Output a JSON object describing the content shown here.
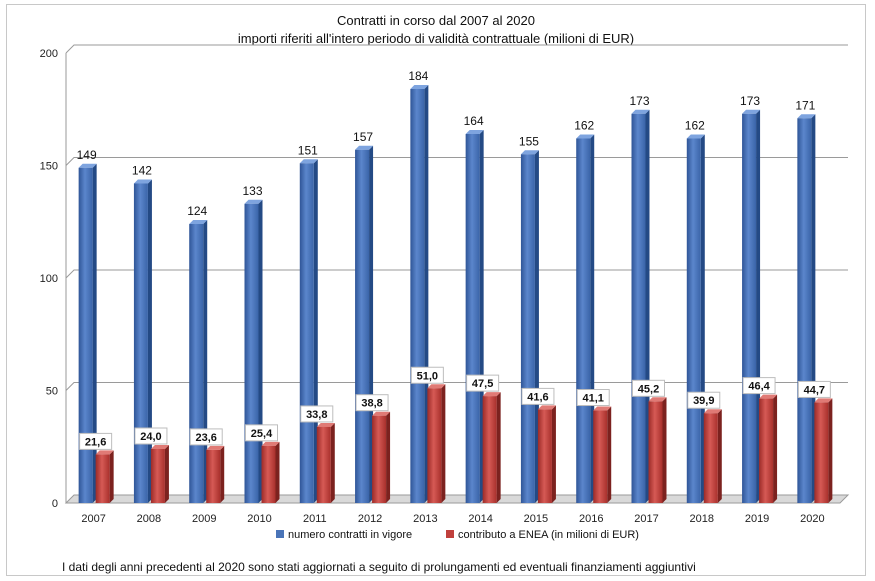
{
  "chart_data": {
    "type": "bar",
    "title": "Contratti in corso dal 2007 al 2020",
    "subtitle": "importi riferiti all'intero periodo di validità contrattuale  (milioni di EUR)",
    "categories": [
      "2007",
      "2008",
      "2009",
      "2010",
      "2011",
      "2012",
      "2013",
      "2014",
      "2015",
      "2016",
      "2017",
      "2018",
      "2019",
      "2020"
    ],
    "series": [
      {
        "name": "numero contratti  in vigore",
        "color": "#4a74b8",
        "values": [
          149,
          142,
          124,
          133,
          151,
          157,
          184,
          164,
          155,
          162,
          173,
          162,
          173,
          171
        ],
        "labels": [
          "149",
          "142",
          "124",
          "133",
          "151",
          "157",
          "184",
          "164",
          "155",
          "162",
          "173",
          "162",
          "173",
          "171"
        ]
      },
      {
        "name": "contributo a ENEA (in milioni di EUR)",
        "color": "#c0403c",
        "values": [
          21.6,
          24.0,
          23.6,
          25.4,
          33.8,
          38.8,
          51.0,
          47.5,
          41.6,
          41.1,
          45.2,
          39.9,
          46.4,
          44.7
        ],
        "labels": [
          "21,6",
          "24,0",
          "23,6",
          "25,4",
          "33,8",
          "38,8",
          "51,0",
          "47,5",
          "41,6",
          "41,1",
          "45,2",
          "39,9",
          "46,4",
          "44,7"
        ]
      }
    ],
    "ylim": [
      0,
      200
    ],
    "yticks": [
      0,
      50,
      100,
      150,
      200
    ],
    "grid": true,
    "legend_position": "bottom"
  },
  "footnote": "I dati degli  anni precedenti al 2020 sono stati aggiornati a seguito di prolungamenti  ed eventuali  finanziamenti  aggiuntivi"
}
